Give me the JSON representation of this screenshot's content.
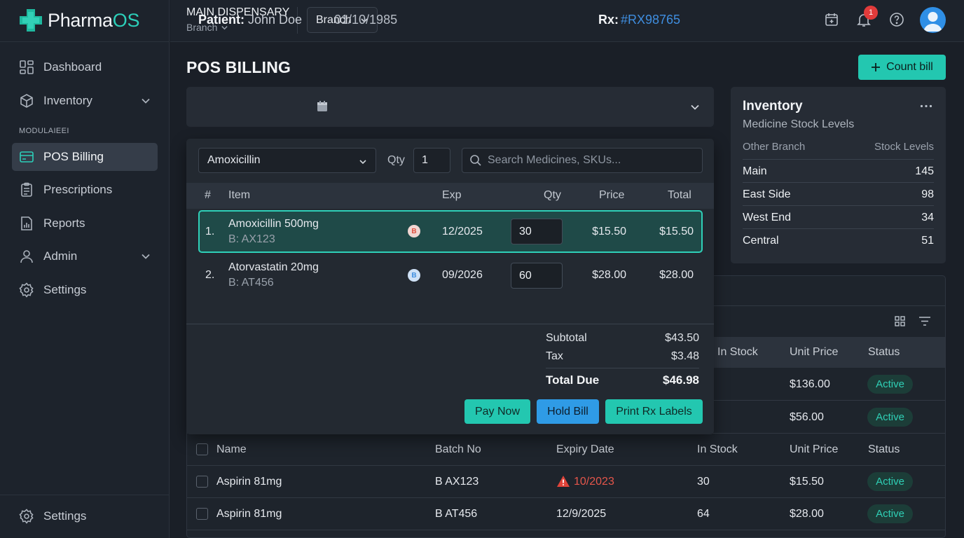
{
  "app": {
    "logo_prefix": "Pharma",
    "logo_suffix": "OS",
    "accent_color": "#23c7b0"
  },
  "sidebar": {
    "items": [
      {
        "label": "Dashboard",
        "icon": "dashboard-icon"
      },
      {
        "label": "Inventory",
        "icon": "box-icon",
        "expandable": true
      },
      {
        "label": "POS Billing",
        "icon": "card-icon",
        "active": true
      },
      {
        "label": "Prescriptions",
        "icon": "clipboard-icon"
      },
      {
        "label": "Reports",
        "icon": "report-icon"
      },
      {
        "label": "Admin",
        "icon": "user-icon",
        "expandable": true
      },
      {
        "label": "Settings",
        "icon": "gear-icon"
      }
    ],
    "section_label": "MODULAIEEI",
    "bottom_item": {
      "label": "Settings",
      "icon": "gear-icon"
    }
  },
  "topbar": {
    "dispensary_title": "MAIN DISPENSARY",
    "dispensary_sub": "Branch",
    "branch_button": "Branch",
    "notification_count": "1",
    "icons": [
      "calendar-add-icon",
      "bell-icon",
      "help-icon",
      "avatar"
    ]
  },
  "page": {
    "title": "POS BILLING",
    "count_button": "Count bill"
  },
  "patient": {
    "label": "Patient:",
    "name": "John Doe",
    "dob": "01/10/1985",
    "rx_label": "Rx:",
    "rx_value": "#RX98765"
  },
  "pos": {
    "medicine_select": "Amoxicillin",
    "qty_label": "Qty",
    "qty_value": "1",
    "search_placeholder": "Search Medicines, SKUs...",
    "headers": {
      "num": "#",
      "item": "Item",
      "exp": "Exp",
      "qty": "Qty",
      "price": "Price",
      "total": "Total"
    },
    "items": [
      {
        "num": "1.",
        "name": "Amoxicillin 500mg",
        "batch": "B: AX123",
        "badge": "B",
        "badge_color": "#e0503f",
        "exp": "12/2025",
        "qty": "30",
        "price": "$15.50",
        "total": "$15.50",
        "selected": true
      },
      {
        "num": "2.",
        "name": "Atorvastatin 20mg",
        "batch": "B: AT456",
        "badge": "B",
        "badge_color": "#3f8ee0",
        "exp": "09/2026",
        "qty": "60",
        "price": "$28.00",
        "total": "$28.00",
        "selected": false
      }
    ],
    "subtotal_label": "Subtotal",
    "subtotal": "$43.50",
    "tax_label": "Tax",
    "tax": "$3.48",
    "total_label": "Total Due",
    "total": "$46.98",
    "buttons": {
      "pay": "Pay Now",
      "hold": "Hold Bill",
      "print": "Print Rx Labels"
    }
  },
  "inventory": {
    "title": "Inventory",
    "subtitle": "Medicine Stock Levels",
    "col_branch": "Other Branch",
    "col_stock": "Stock Levels",
    "rows": [
      {
        "name": "Main",
        "value": "145"
      },
      {
        "name": "East Side",
        "value": "98"
      },
      {
        "name": "West End",
        "value": "34"
      },
      {
        "name": "Central",
        "value": "51"
      }
    ]
  },
  "table": {
    "partial_headers": {
      "in_stock": "In Stock",
      "unit_price": "Unit Price",
      "status": "Status"
    },
    "partial_rows": [
      {
        "unit_price": "$136.00",
        "status": "Active"
      },
      {
        "unit_price": "$56.00",
        "status": "Active"
      }
    ],
    "headers": {
      "name": "Name",
      "batch": "Batch No",
      "expiry": "Expiry Date",
      "in_stock": "In Stock",
      "unit_price": "Unit Price",
      "status": "Status"
    },
    "rows": [
      {
        "name": "Aspirin 81mg",
        "batch": "B AX123",
        "expiry": "10/2023",
        "expired": true,
        "in_stock": "30",
        "unit_price": "$15.50",
        "status": "Active"
      },
      {
        "name": "Aspirin 81mg",
        "batch": "B AT456",
        "expiry": "12/9/2025",
        "expired": false,
        "in_stock": "64",
        "unit_price": "$28.00",
        "status": "Active"
      }
    ]
  }
}
